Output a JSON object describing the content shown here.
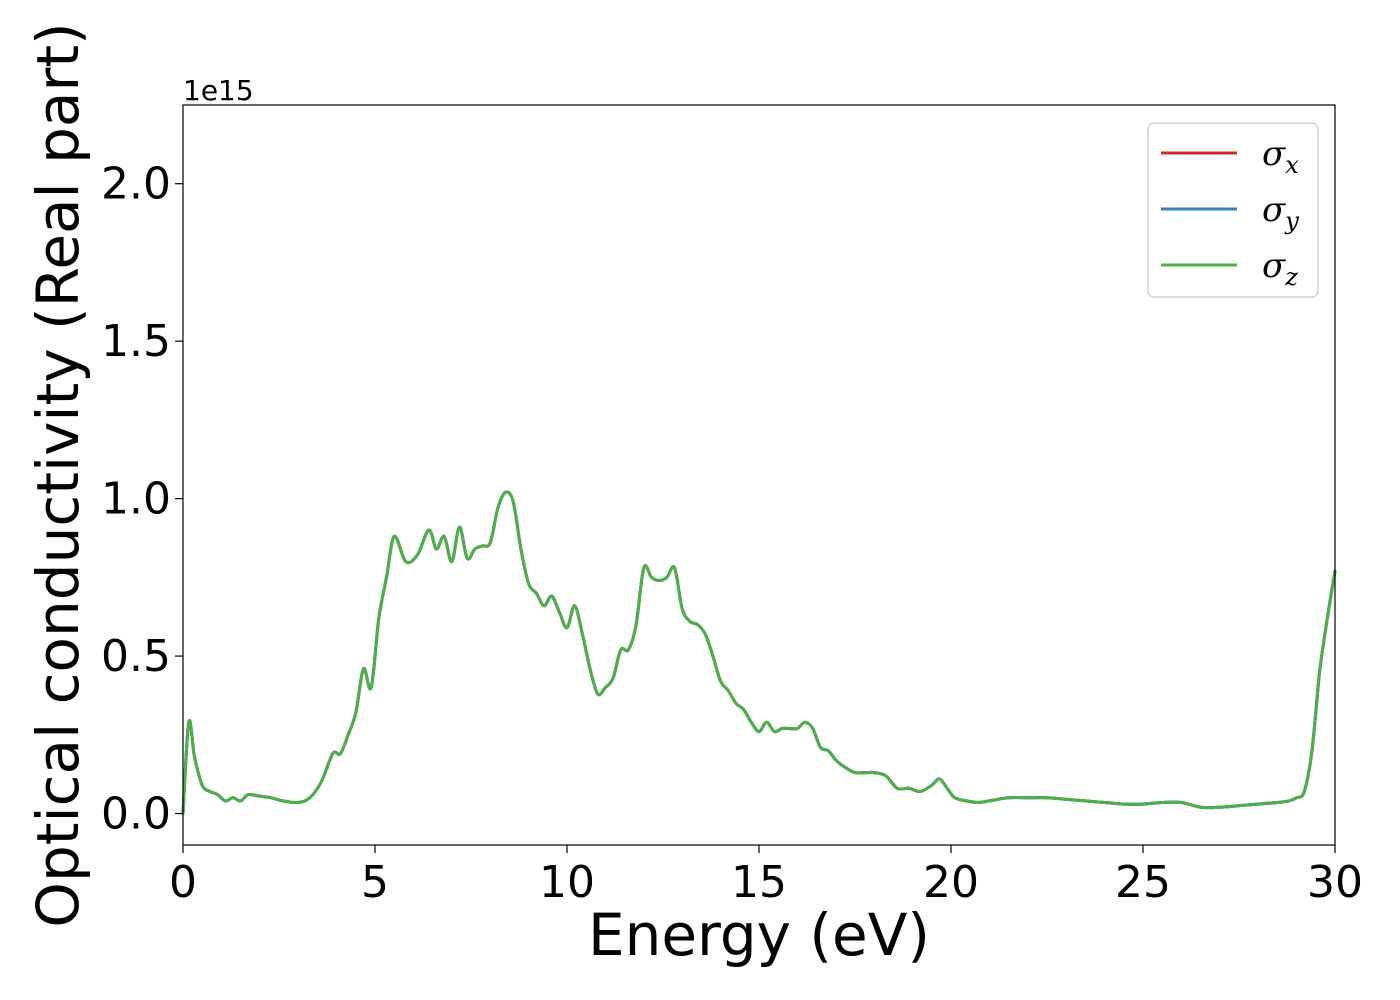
{
  "chart_data": {
    "type": "line",
    "title": "",
    "xlabel": "Energy (eV)",
    "ylabel": "Optical conductivity (Real part)",
    "y_offset_text": "1e15",
    "xlim": [
      0,
      30
    ],
    "ylim": [
      -0.1,
      2.25
    ],
    "x_ticks": [
      0,
      5,
      10,
      15,
      20,
      25,
      30
    ],
    "x_tick_labels": [
      "0",
      "5",
      "10",
      "15",
      "20",
      "25",
      "30"
    ],
    "y_ticks": [
      0.0,
      0.5,
      1.0,
      1.5,
      2.0
    ],
    "y_tick_labels": [
      "0.0",
      "0.5",
      "1.0",
      "1.5",
      "2.0"
    ],
    "grid": false,
    "legend": "top-right",
    "x": [
      0.0,
      0.15,
      0.3,
      0.5,
      0.7,
      0.9,
      1.1,
      1.3,
      1.5,
      1.7,
      2.0,
      2.3,
      2.6,
      3.0,
      3.3,
      3.6,
      3.9,
      4.1,
      4.3,
      4.5,
      4.7,
      4.9,
      5.1,
      5.3,
      5.5,
      5.8,
      6.1,
      6.4,
      6.6,
      6.8,
      7.0,
      7.2,
      7.4,
      7.6,
      7.8,
      8.0,
      8.2,
      8.4,
      8.6,
      8.8,
      9.0,
      9.2,
      9.4,
      9.6,
      9.8,
      10.0,
      10.2,
      10.4,
      10.6,
      10.8,
      11.0,
      11.2,
      11.4,
      11.6,
      11.8,
      12.0,
      12.2,
      12.4,
      12.6,
      12.8,
      13.0,
      13.2,
      13.4,
      13.6,
      13.8,
      14.0,
      14.2,
      14.4,
      14.6,
      14.8,
      15.0,
      15.2,
      15.4,
      15.6,
      15.8,
      16.0,
      16.2,
      16.4,
      16.6,
      16.8,
      17.0,
      17.2,
      17.5,
      17.8,
      18.0,
      18.3,
      18.6,
      18.9,
      19.2,
      19.5,
      19.7,
      19.9,
      20.1,
      20.4,
      20.7,
      21.0,
      21.5,
      22.0,
      22.5,
      23.0,
      23.5,
      24.0,
      24.5,
      25.0,
      25.5,
      26.0,
      26.5,
      27.0,
      27.5,
      28.0,
      28.5,
      28.8,
      29.0,
      29.2,
      29.4,
      29.6,
      29.8,
      30.0
    ],
    "series": [
      {
        "name": "σx",
        "color": "#d62728",
        "values": [
          0.0,
          0.29,
          0.18,
          0.09,
          0.07,
          0.06,
          0.04,
          0.05,
          0.04,
          0.06,
          0.055,
          0.05,
          0.04,
          0.035,
          0.05,
          0.1,
          0.19,
          0.19,
          0.25,
          0.32,
          0.46,
          0.4,
          0.62,
          0.75,
          0.88,
          0.8,
          0.82,
          0.9,
          0.84,
          0.88,
          0.8,
          0.91,
          0.81,
          0.84,
          0.85,
          0.86,
          0.97,
          1.02,
          0.99,
          0.84,
          0.73,
          0.7,
          0.66,
          0.69,
          0.64,
          0.59,
          0.66,
          0.57,
          0.46,
          0.38,
          0.4,
          0.43,
          0.52,
          0.52,
          0.6,
          0.78,
          0.75,
          0.74,
          0.75,
          0.78,
          0.65,
          0.61,
          0.6,
          0.57,
          0.5,
          0.42,
          0.39,
          0.35,
          0.33,
          0.29,
          0.26,
          0.29,
          0.26,
          0.27,
          0.27,
          0.27,
          0.29,
          0.27,
          0.21,
          0.2,
          0.17,
          0.15,
          0.13,
          0.13,
          0.13,
          0.12,
          0.08,
          0.08,
          0.07,
          0.09,
          0.11,
          0.08,
          0.05,
          0.04,
          0.035,
          0.04,
          0.05,
          0.05,
          0.05,
          0.045,
          0.04,
          0.035,
          0.03,
          0.03,
          0.035,
          0.035,
          0.02,
          0.02,
          0.025,
          0.03,
          0.035,
          0.04,
          0.05,
          0.07,
          0.2,
          0.45,
          0.62,
          0.77
        ]
      },
      {
        "name": "σy",
        "color": "#377eb8",
        "values": [
          0.0,
          0.29,
          0.18,
          0.09,
          0.07,
          0.06,
          0.04,
          0.05,
          0.04,
          0.06,
          0.055,
          0.05,
          0.04,
          0.035,
          0.05,
          0.1,
          0.19,
          0.19,
          0.25,
          0.32,
          0.46,
          0.4,
          0.62,
          0.75,
          0.88,
          0.8,
          0.82,
          0.9,
          0.84,
          0.88,
          0.8,
          0.91,
          0.81,
          0.84,
          0.85,
          0.86,
          0.97,
          1.02,
          0.99,
          0.84,
          0.73,
          0.7,
          0.66,
          0.69,
          0.64,
          0.59,
          0.66,
          0.57,
          0.46,
          0.38,
          0.4,
          0.43,
          0.52,
          0.52,
          0.6,
          0.78,
          0.75,
          0.74,
          0.75,
          0.78,
          0.65,
          0.61,
          0.6,
          0.57,
          0.5,
          0.42,
          0.39,
          0.35,
          0.33,
          0.29,
          0.26,
          0.29,
          0.26,
          0.27,
          0.27,
          0.27,
          0.29,
          0.27,
          0.21,
          0.2,
          0.17,
          0.15,
          0.13,
          0.13,
          0.13,
          0.12,
          0.08,
          0.08,
          0.07,
          0.09,
          0.11,
          0.08,
          0.05,
          0.04,
          0.035,
          0.04,
          0.05,
          0.05,
          0.05,
          0.045,
          0.04,
          0.035,
          0.03,
          0.03,
          0.035,
          0.035,
          0.02,
          0.02,
          0.025,
          0.03,
          0.035,
          0.04,
          0.05,
          0.07,
          0.2,
          0.45,
          0.62,
          0.77
        ]
      },
      {
        "name": "σz",
        "color": "#4daf4a",
        "values": [
          0.0,
          0.29,
          0.18,
          0.09,
          0.07,
          0.06,
          0.04,
          0.05,
          0.04,
          0.06,
          0.055,
          0.05,
          0.04,
          0.035,
          0.05,
          0.1,
          0.19,
          0.19,
          0.25,
          0.32,
          0.46,
          0.4,
          0.62,
          0.75,
          0.88,
          0.8,
          0.82,
          0.9,
          0.84,
          0.88,
          0.8,
          0.91,
          0.81,
          0.84,
          0.85,
          0.86,
          0.97,
          1.02,
          0.99,
          0.84,
          0.73,
          0.7,
          0.66,
          0.69,
          0.64,
          0.59,
          0.66,
          0.57,
          0.46,
          0.38,
          0.4,
          0.43,
          0.52,
          0.52,
          0.6,
          0.78,
          0.75,
          0.74,
          0.75,
          0.78,
          0.65,
          0.61,
          0.6,
          0.57,
          0.5,
          0.42,
          0.39,
          0.35,
          0.33,
          0.29,
          0.26,
          0.29,
          0.26,
          0.27,
          0.27,
          0.27,
          0.29,
          0.27,
          0.21,
          0.2,
          0.17,
          0.15,
          0.13,
          0.13,
          0.13,
          0.12,
          0.08,
          0.08,
          0.07,
          0.09,
          0.11,
          0.08,
          0.05,
          0.04,
          0.035,
          0.04,
          0.05,
          0.05,
          0.05,
          0.045,
          0.04,
          0.035,
          0.03,
          0.03,
          0.035,
          0.035,
          0.02,
          0.02,
          0.025,
          0.03,
          0.035,
          0.04,
          0.05,
          0.07,
          0.2,
          0.45,
          0.62,
          0.77
        ]
      }
    ],
    "legend_entries": [
      {
        "symbol": "σ",
        "sub": "x",
        "color": "#d62728"
      },
      {
        "symbol": "σ",
        "sub": "y",
        "color": "#377eb8"
      },
      {
        "symbol": "σ",
        "sub": "z",
        "color": "#4daf4a"
      }
    ]
  }
}
